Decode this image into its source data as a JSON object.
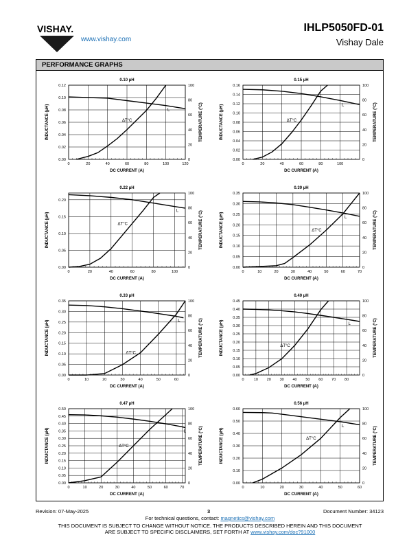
{
  "header": {
    "brand": "VISHAY.",
    "url": "www.vishay.com",
    "part_number": "IHLP5050FD-01",
    "division": "Vishay Dale"
  },
  "section_title": "PERFORMANCE GRAPHS",
  "footer": {
    "revision": "Revision: 07-May-2025",
    "page": "3",
    "document_number": "Document Number: 34123",
    "contact_prefix": "For technical questions, contact: ",
    "contact_email": "magnetics@vishay.com",
    "disclaimer_line1": "THIS DOCUMENT IS SUBJECT TO CHANGE WITHOUT NOTICE. THE PRODUCTS DESCRIBED HEREIN AND THIS DOCUMENT",
    "disclaimer_line2_prefix": "ARE SUBJECT TO SPECIFIC DISCLAIMERS, SET FORTH AT ",
    "disclaimer_url": "www.vishay.com/doc?91000"
  },
  "chart_data": [
    {
      "type": "line",
      "title": "0.10 µH",
      "xlabel": "DC CURRENT (A)",
      "ylabel": "INDUCTANCE (µH)",
      "y2label": "TEMPERATURE (°C)",
      "xlim": [
        0,
        120
      ],
      "xticks": [
        0,
        20,
        40,
        60,
        80,
        100,
        120
      ],
      "ylim": [
        0,
        0.12
      ],
      "yticks": [
        "0.00",
        "0.02",
        "0.04",
        "0.06",
        "0.08",
        "0.10",
        "0.12"
      ],
      "y2lim": [
        0,
        100
      ],
      "y2ticks": [
        0,
        20,
        40,
        60,
        80,
        100
      ],
      "grid": true,
      "series": [
        {
          "name": "L",
          "axis": "left",
          "x": [
            0,
            20,
            40,
            60,
            80,
            100,
            120
          ],
          "y": [
            0.101,
            0.1,
            0.099,
            0.095,
            0.091,
            0.087,
            0.082
          ]
        },
        {
          "name": "ΔT°C",
          "axis": "right",
          "x": [
            8,
            20,
            30,
            40,
            50,
            60,
            70,
            80,
            90,
            100
          ],
          "y": [
            0,
            4,
            9,
            18,
            28,
            40,
            53,
            66,
            82,
            100
          ]
        }
      ]
    },
    {
      "type": "line",
      "title": "0.15 µH",
      "xlabel": "DC CURRENT (A)",
      "ylabel": "INDUCTANCE (µH)",
      "y2label": "TEMPERATURE (°C)",
      "xlim": [
        0,
        120
      ],
      "xticks": [
        0,
        20,
        40,
        60,
        80,
        100
      ],
      "ylim": [
        0,
        0.16
      ],
      "yticks": [
        "0.00",
        "0.02",
        "0.04",
        "0.06",
        "0.08",
        "0.10",
        "0.12",
        "0.14",
        "0.16"
      ],
      "y2lim": [
        0,
        100
      ],
      "y2ticks": [
        0,
        20,
        40,
        60,
        80,
        100
      ],
      "grid": true,
      "series": [
        {
          "name": "L",
          "axis": "left",
          "x": [
            0,
            20,
            40,
            60,
            80,
            100,
            120
          ],
          "y": [
            0.151,
            0.15,
            0.147,
            0.142,
            0.135,
            0.127,
            0.118
          ]
        },
        {
          "name": "ΔT°C",
          "axis": "right",
          "x": [
            10,
            20,
            30,
            40,
            50,
            60,
            70,
            80,
            87
          ],
          "y": [
            0,
            3,
            10,
            21,
            36,
            53,
            72,
            92,
            100
          ]
        }
      ]
    },
    {
      "type": "line",
      "title": "0.22 µH",
      "xlabel": "DC CURRENT (A)",
      "ylabel": "INDUCTANCE (µH)",
      "y2label": "TEMPERATURE (°C)",
      "xlim": [
        0,
        110
      ],
      "xticks": [
        0,
        20,
        40,
        60,
        80,
        100
      ],
      "ylim": [
        0,
        0.22
      ],
      "yticks": [
        "0.00",
        "0.05",
        "0.10",
        "0.15",
        "0.20"
      ],
      "y2lim": [
        0,
        100
      ],
      "y2ticks": [
        0,
        20,
        40,
        60,
        80,
        100
      ],
      "grid": true,
      "series": [
        {
          "name": "L",
          "axis": "left",
          "x": [
            0,
            20,
            40,
            60,
            80,
            100,
            110
          ],
          "y": [
            0.215,
            0.212,
            0.207,
            0.2,
            0.19,
            0.18,
            0.175
          ]
        },
        {
          "name": "ΔT°C",
          "axis": "right",
          "x": [
            0,
            10,
            20,
            30,
            40,
            50,
            60,
            70,
            80,
            86
          ],
          "y": [
            0,
            1,
            4,
            12,
            25,
            42,
            59,
            76,
            94,
            100
          ]
        }
      ]
    },
    {
      "type": "line",
      "title": "0.30 µH",
      "xlabel": "DC CURRENT (A)",
      "ylabel": "INDUCTANCE (µH)",
      "y2label": "TEMPERATURE (°C)",
      "xlim": [
        0,
        70
      ],
      "xticks": [
        0,
        10,
        20,
        30,
        40,
        50,
        60,
        70
      ],
      "ylim": [
        0,
        0.35
      ],
      "yticks": [
        "0.00",
        "0.05",
        "0.10",
        "0.15",
        "0.20",
        "0.25",
        "0.30",
        "0.35"
      ],
      "y2lim": [
        0,
        100
      ],
      "y2ticks": [
        0,
        20,
        40,
        60,
        80,
        100
      ],
      "grid": true,
      "series": [
        {
          "name": "L",
          "axis": "left",
          "x": [
            0,
            10,
            20,
            30,
            40,
            50,
            60,
            70
          ],
          "y": [
            0.31,
            0.308,
            0.303,
            0.295,
            0.283,
            0.27,
            0.256,
            0.24
          ]
        },
        {
          "name": "ΔT°C",
          "axis": "right",
          "x": [
            0,
            10,
            20,
            25,
            30,
            40,
            50,
            60,
            65,
            70
          ],
          "y": [
            0,
            1,
            2,
            5,
            13,
            30,
            50,
            72,
            86,
            100
          ]
        }
      ]
    },
    {
      "type": "line",
      "title": "0.33 µH",
      "xlabel": "DC CURRENT (A)",
      "ylabel": "INDUCTANCE (µH)",
      "y2label": "TEMPERATURE (°C)",
      "xlim": [
        0,
        65
      ],
      "xticks": [
        0,
        10,
        20,
        30,
        40,
        50,
        60
      ],
      "ylim": [
        0,
        0.35
      ],
      "yticks": [
        "0.00",
        "0.05",
        "0.10",
        "0.15",
        "0.20",
        "0.25",
        "0.30",
        "0.35"
      ],
      "y2lim": [
        0,
        100
      ],
      "y2ticks": [
        0,
        20,
        40,
        60,
        80,
        100
      ],
      "grid": true,
      "series": [
        {
          "name": "L",
          "axis": "left",
          "x": [
            0,
            10,
            20,
            30,
            40,
            50,
            60,
            64
          ],
          "y": [
            0.33,
            0.328,
            0.322,
            0.313,
            0.302,
            0.29,
            0.277,
            0.27
          ]
        },
        {
          "name": "ΔT°C",
          "axis": "right",
          "x": [
            0,
            10,
            20,
            30,
            40,
            50,
            60,
            65
          ],
          "y": [
            0,
            0,
            2,
            14,
            30,
            55,
            82,
            100
          ]
        }
      ]
    },
    {
      "type": "line",
      "title": "0.40 µH",
      "xlabel": "DC CURRENT (A)",
      "ylabel": "INDUCTANCE (µH)",
      "y2label": "TEMPERATURE (°C)",
      "xlim": [
        0,
        90
      ],
      "xticks": [
        0,
        10,
        20,
        30,
        40,
        50,
        60,
        70,
        80
      ],
      "ylim": [
        0,
        0.45
      ],
      "yticks": [
        "0.00",
        "0.05",
        "0.10",
        "0.15",
        "0.20",
        "0.25",
        "0.30",
        "0.35",
        "0.40",
        "0.45"
      ],
      "y2lim": [
        0,
        100
      ],
      "y2ticks": [
        0,
        20,
        40,
        60,
        80,
        100
      ],
      "grid": true,
      "series": [
        {
          "name": "L",
          "axis": "left",
          "x": [
            0,
            10,
            20,
            30,
            40,
            50,
            60,
            70,
            80,
            90
          ],
          "y": [
            0.4,
            0.398,
            0.395,
            0.39,
            0.383,
            0.373,
            0.362,
            0.35,
            0.338,
            0.325
          ]
        },
        {
          "name": "ΔT°C",
          "axis": "right",
          "x": [
            5,
            10,
            20,
            30,
            40,
            50,
            60,
            66
          ],
          "y": [
            0,
            2,
            10,
            22,
            40,
            62,
            88,
            100
          ]
        }
      ]
    },
    {
      "type": "line",
      "title": "0.47 µH",
      "xlabel": "DC CURRENT (A)",
      "ylabel": "INDUCTANCE (µH)",
      "y2label": "TEMPERATURE (°C)",
      "xlim": [
        0,
        72
      ],
      "xticks": [
        0,
        10,
        20,
        30,
        40,
        50,
        60,
        70
      ],
      "ylim": [
        0,
        0.5
      ],
      "yticks": [
        "0.00",
        "0.05",
        "0.10",
        "0.15",
        "0.20",
        "0.25",
        "0.30",
        "0.35",
        "0.40",
        "0.45",
        "0.50"
      ],
      "y2lim": [
        0,
        100
      ],
      "y2ticks": [
        0,
        20,
        40,
        60,
        80,
        100
      ],
      "grid": true,
      "series": [
        {
          "name": "L",
          "axis": "left",
          "x": [
            0,
            10,
            20,
            30,
            40,
            50,
            60,
            70,
            72
          ],
          "y": [
            0.46,
            0.458,
            0.452,
            0.443,
            0.43,
            0.415,
            0.398,
            0.378,
            0.372
          ]
        },
        {
          "name": "ΔT°C",
          "axis": "right",
          "x": [
            0,
            10,
            20,
            30,
            40,
            50,
            60,
            64
          ],
          "y": [
            0,
            3,
            8,
            28,
            50,
            72,
            92,
            100
          ]
        }
      ]
    },
    {
      "type": "line",
      "title": "0.56 µH",
      "xlabel": "DC CURRENT (A)",
      "ylabel": "INDUCTANCE (µH)",
      "y2label": "TEMPERATURE (°C)",
      "xlim": [
        0,
        60
      ],
      "xticks": [
        0,
        10,
        20,
        30,
        40,
        50,
        60
      ],
      "ylim": [
        0,
        0.6
      ],
      "yticks": [
        "0.00",
        "0.10",
        "0.20",
        "0.30",
        "0.40",
        "0.50",
        "0.60"
      ],
      "y2lim": [
        0,
        100
      ],
      "y2ticks": [
        0,
        20,
        40,
        60,
        80,
        100
      ],
      "grid": true,
      "series": [
        {
          "name": "L",
          "axis": "left",
          "x": [
            0,
            10,
            15,
            20,
            30,
            40,
            50,
            60
          ],
          "y": [
            0.57,
            0.568,
            0.565,
            0.555,
            0.535,
            0.515,
            0.495,
            0.47
          ]
        },
        {
          "name": "ΔT°C",
          "axis": "right",
          "x": [
            5,
            10,
            20,
            30,
            40,
            50,
            55
          ],
          "y": [
            0,
            5,
            20,
            38,
            60,
            88,
            100
          ]
        }
      ]
    }
  ]
}
